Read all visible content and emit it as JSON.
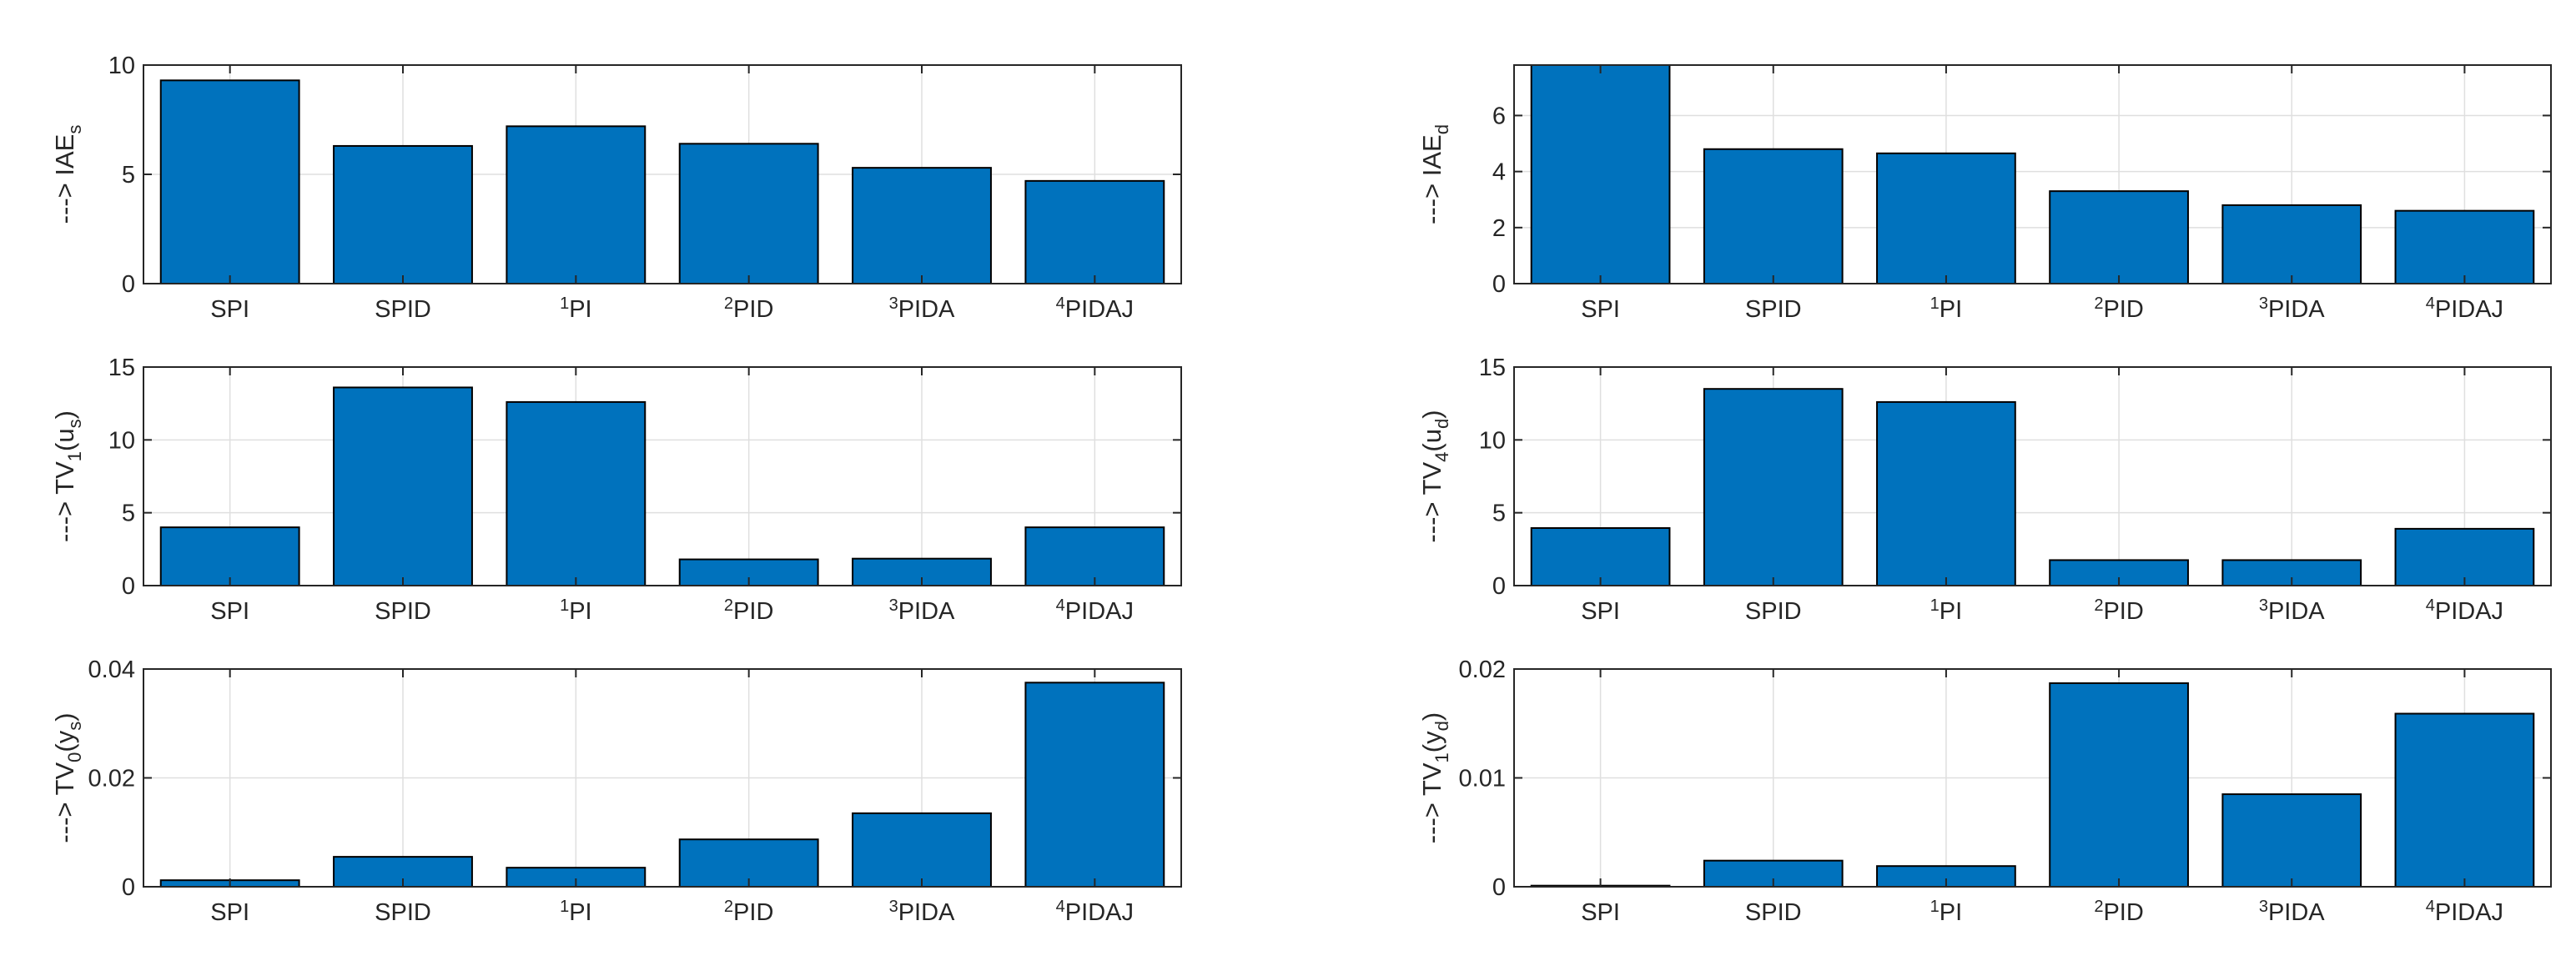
{
  "chart_data": [
    {
      "type": "bar",
      "ylabel": {
        "main": "---> IAE",
        "sub": "s",
        "suffix": ""
      },
      "categories": [
        {
          "sup": "",
          "name": "SPI"
        },
        {
          "sup": "",
          "name": "SPID"
        },
        {
          "sup": "1",
          "name": "PI"
        },
        {
          "sup": "2",
          "name": "PID"
        },
        {
          "sup": "3",
          "name": "PIDA"
        },
        {
          "sup": "4",
          "name": "PIDAJ"
        }
      ],
      "values": [
        9.3,
        6.3,
        7.2,
        6.4,
        5.3,
        4.7
      ],
      "ylim": [
        0,
        10
      ],
      "yticks": [
        0,
        5,
        10
      ],
      "ytick_labels": [
        "0",
        "5",
        "10"
      ],
      "grid": true
    },
    {
      "type": "bar",
      "ylabel": {
        "main": "---> IAE",
        "sub": "d",
        "suffix": ""
      },
      "categories": [
        {
          "sup": "",
          "name": "SPI"
        },
        {
          "sup": "",
          "name": "SPID"
        },
        {
          "sup": "1",
          "name": "PI"
        },
        {
          "sup": "2",
          "name": "PID"
        },
        {
          "sup": "3",
          "name": "PIDA"
        },
        {
          "sup": "4",
          "name": "PIDAJ"
        }
      ],
      "values": [
        7.8,
        4.8,
        4.65,
        3.3,
        2.8,
        2.6
      ],
      "ylim": [
        0,
        7.8
      ],
      "yticks": [
        0,
        2,
        4,
        6
      ],
      "ytick_labels": [
        "0",
        "2",
        "4",
        "6"
      ],
      "grid": true
    },
    {
      "type": "bar",
      "ylabel": {
        "main": "---> TV",
        "sub": "1",
        "suffix": "(u",
        "sub2": "s",
        "close": ")"
      },
      "categories": [
        {
          "sup": "",
          "name": "SPI"
        },
        {
          "sup": "",
          "name": "SPID"
        },
        {
          "sup": "1",
          "name": "PI"
        },
        {
          "sup": "2",
          "name": "PID"
        },
        {
          "sup": "3",
          "name": "PIDA"
        },
        {
          "sup": "4",
          "name": "PIDAJ"
        }
      ],
      "values": [
        4.0,
        13.6,
        12.6,
        1.8,
        1.85,
        4.0
      ],
      "ylim": [
        0,
        15
      ],
      "yticks": [
        0,
        5,
        10,
        15
      ],
      "ytick_labels": [
        "0",
        "5",
        "10",
        "15"
      ],
      "grid": true
    },
    {
      "type": "bar",
      "ylabel": {
        "main": "---> TV",
        "sub": "4",
        "suffix": "(u",
        "sub2": "d",
        "close": ")"
      },
      "categories": [
        {
          "sup": "",
          "name": "SPI"
        },
        {
          "sup": "",
          "name": "SPID"
        },
        {
          "sup": "1",
          "name": "PI"
        },
        {
          "sup": "2",
          "name": "PID"
        },
        {
          "sup": "3",
          "name": "PIDA"
        },
        {
          "sup": "4",
          "name": "PIDAJ"
        }
      ],
      "values": [
        3.95,
        13.5,
        12.6,
        1.75,
        1.75,
        3.9
      ],
      "ylim": [
        0,
        15
      ],
      "yticks": [
        0,
        5,
        10,
        15
      ],
      "ytick_labels": [
        "0",
        "5",
        "10",
        "15"
      ],
      "grid": true
    },
    {
      "type": "bar",
      "ylabel": {
        "main": "---> TV",
        "sub": "0",
        "suffix": "(y",
        "sub2": "s",
        "close": ")"
      },
      "categories": [
        {
          "sup": "",
          "name": "SPI"
        },
        {
          "sup": "",
          "name": "SPID"
        },
        {
          "sup": "1",
          "name": "PI"
        },
        {
          "sup": "2",
          "name": "PID"
        },
        {
          "sup": "3",
          "name": "PIDA"
        },
        {
          "sup": "4",
          "name": "PIDAJ"
        }
      ],
      "values": [
        0.0012,
        0.0055,
        0.0035,
        0.0087,
        0.0135,
        0.0375
      ],
      "ylim": [
        0,
        0.04
      ],
      "yticks": [
        0,
        0.02,
        0.04
      ],
      "ytick_labels": [
        "0",
        "0.02",
        "0.04"
      ],
      "grid": true
    },
    {
      "type": "bar",
      "ylabel": {
        "main": "---> TV",
        "sub": "1",
        "suffix": "(y",
        "sub2": "d",
        "close": ")"
      },
      "categories": [
        {
          "sup": "",
          "name": "SPI"
        },
        {
          "sup": "",
          "name": "SPID"
        },
        {
          "sup": "1",
          "name": "PI"
        },
        {
          "sup": "2",
          "name": "PID"
        },
        {
          "sup": "3",
          "name": "PIDA"
        },
        {
          "sup": "4",
          "name": "PIDAJ"
        }
      ],
      "values": [
        0.0001,
        0.0024,
        0.0019,
        0.0187,
        0.0085,
        0.0159
      ],
      "ylim": [
        0,
        0.02
      ],
      "yticks": [
        0,
        0.01,
        0.02
      ],
      "ytick_labels": [
        "0",
        "0.01",
        "0.02"
      ],
      "grid": true
    }
  ],
  "style": {
    "bar_color": "#0072bd",
    "bar_edge": "#000000",
    "grid_color": "#dfdfdf",
    "axis_color": "#262626",
    "background": "#ffffff"
  }
}
